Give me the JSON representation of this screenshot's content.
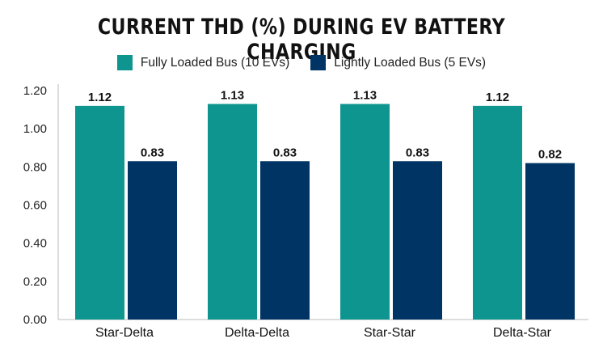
{
  "chart_data": {
    "type": "bar",
    "title": "CURRENT THD (%) DURING EV BATTERY CHARGING",
    "categories": [
      "Star-Delta",
      "Delta-Delta",
      "Star-Star",
      "Delta-Star"
    ],
    "series": [
      {
        "name": "Fully Loaded Bus (10 EVs)",
        "color": "#0f9590",
        "values": [
          1.12,
          1.13,
          1.13,
          1.12
        ],
        "labels": [
          "1.12",
          "1.13",
          "1.13",
          "1.12"
        ]
      },
      {
        "name": "Lightly Loaded Bus (5 EVs)",
        "color": "#003464",
        "values": [
          0.83,
          0.83,
          0.83,
          0.82
        ],
        "labels": [
          "0.83",
          "0.83",
          "0.83",
          "0.82"
        ]
      }
    ],
    "yticks": [
      "0.00",
      "0.20",
      "0.40",
      "0.60",
      "0.80",
      "1.00",
      "1.20"
    ],
    "ylim": [
      0,
      1.2
    ],
    "legend_position": "top",
    "grid": false
  }
}
